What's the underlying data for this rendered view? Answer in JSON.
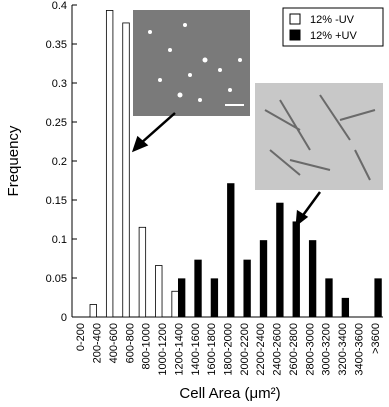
{
  "chart_data": {
    "type": "bar",
    "x_label": "Cell Area (μm²)",
    "y_label": "Frequency",
    "categories": [
      "0-200",
      "200-400",
      "400-600",
      "600-800",
      "800-1000",
      "1000-1200",
      "1200-1400",
      "1400-1600",
      "1600-1800",
      "1800-2000",
      "2000-2200",
      "2200-2400",
      "2400-2600",
      "2600-2800",
      "2800-3000",
      "3000-3200",
      "3200-3400",
      "3400-3600",
      ">3600"
    ],
    "series": [
      {
        "name": "12% -UV",
        "color": "#ffffff",
        "values": [
          0,
          0.016,
          0.393,
          0.377,
          0.115,
          0.066,
          0.033,
          0,
          0,
          0,
          0,
          0,
          0,
          0,
          0,
          0,
          0,
          0,
          0
        ]
      },
      {
        "name": "12% +UV",
        "color": "#000000",
        "values": [
          0,
          0,
          0,
          0,
          0,
          0,
          0.049,
          0.073,
          0.049,
          0.171,
          0.073,
          0.098,
          0.146,
          0.122,
          0.098,
          0.049,
          0.024,
          0,
          0.049
        ]
      }
    ],
    "ylim": [
      0,
      0.4
    ],
    "yticks": [
      0,
      0.05,
      0.1,
      0.15,
      0.2,
      0.25,
      0.3,
      0.35,
      0.4
    ],
    "legend": "upper right"
  }
}
